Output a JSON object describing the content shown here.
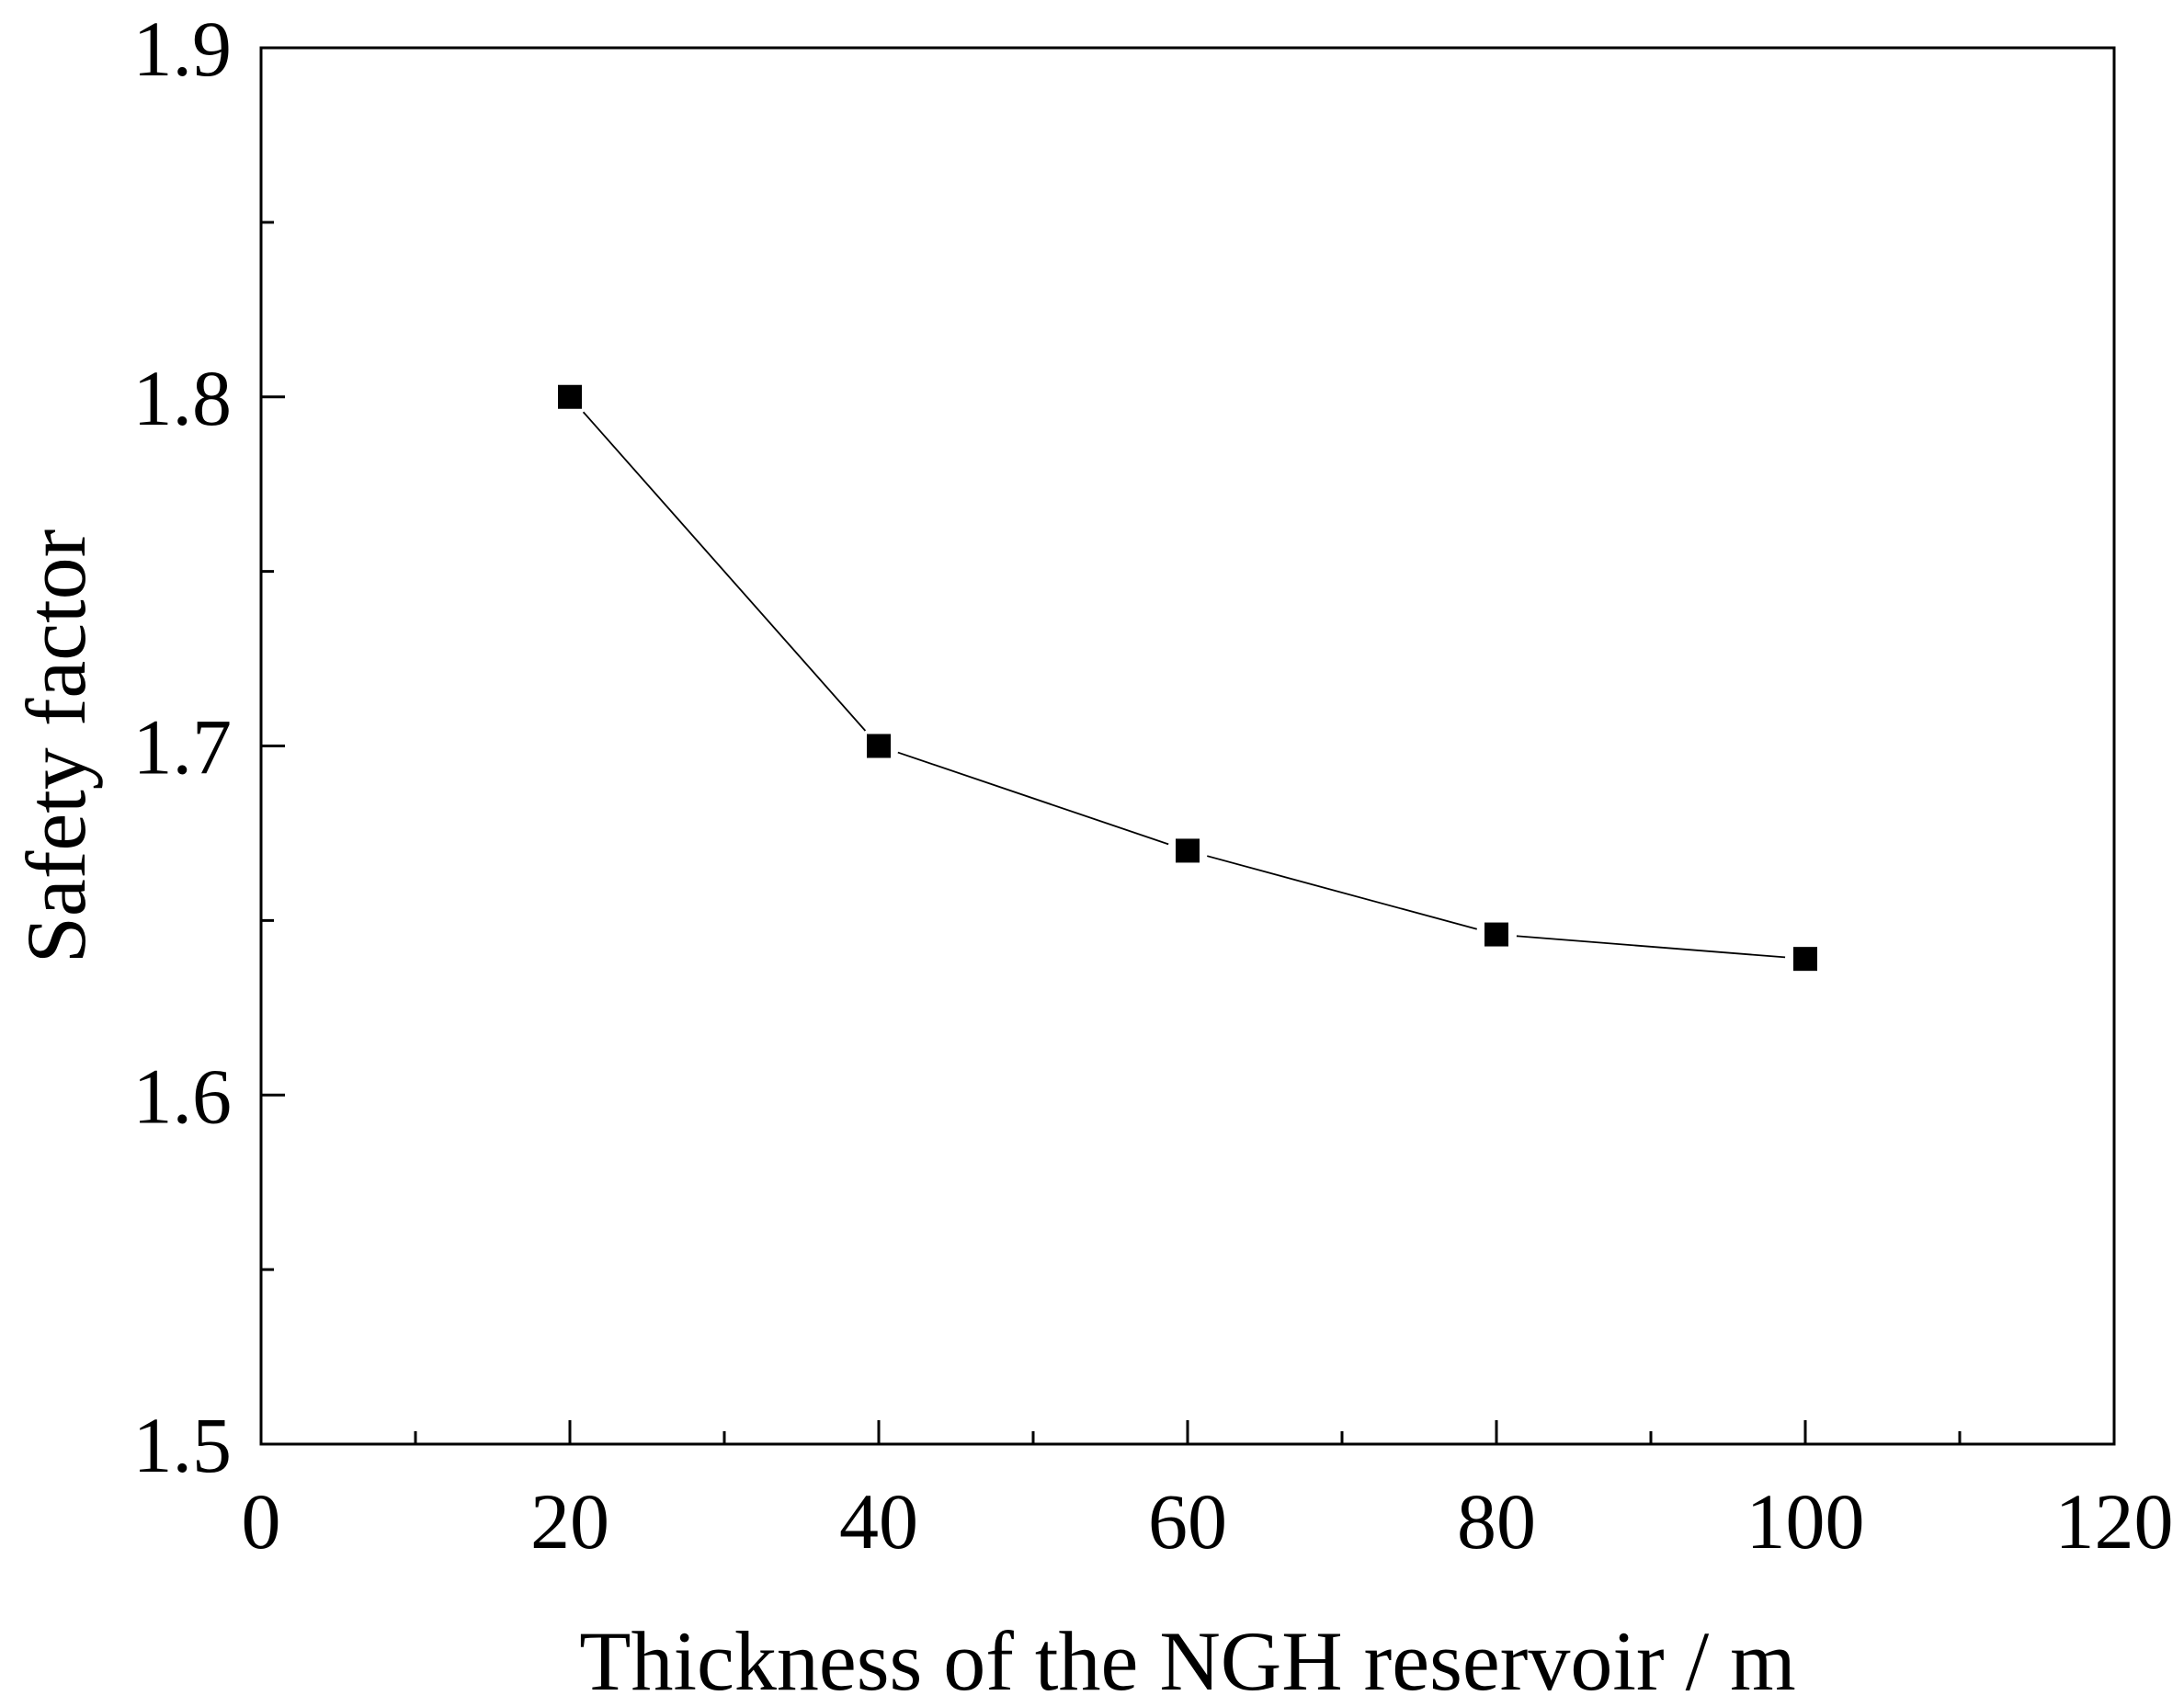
{
  "chart_data": {
    "type": "line",
    "title": "",
    "xlabel": "Thickness of the NGH reservoir / m",
    "ylabel": "Safety factor",
    "xlim": [
      0,
      120
    ],
    "ylim": [
      1.5,
      1.9
    ],
    "x_ticks": [
      "0",
      "20",
      "40",
      "60",
      "80",
      "100",
      "120"
    ],
    "y_ticks": [
      "1.5",
      "1.6",
      "1.7",
      "1.8",
      "1.9"
    ],
    "x_minor_step": 10,
    "y_minor_step": 0.05,
    "grid": false,
    "legend": "none",
    "marker": "square",
    "colors": {
      "line": "#000000",
      "marker": "#000000",
      "axis": "#000000"
    },
    "series": [
      {
        "name": "Safety factor",
        "x": [
          20,
          40,
          60,
          80,
          100
        ],
        "y": [
          1.8,
          1.7,
          1.67,
          1.646,
          1.639
        ]
      }
    ]
  }
}
